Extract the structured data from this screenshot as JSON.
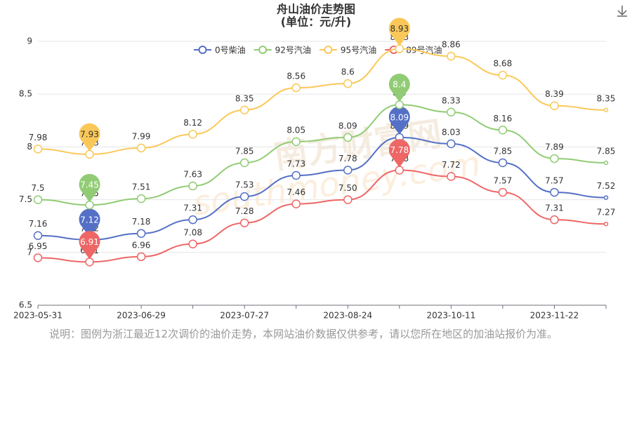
{
  "chart_data": {
    "type": "line",
    "title": "舟山油价走势图",
    "subtitle": "(单位：元/升)",
    "watermark": [
      "南方财富网",
      "southmoney.com"
    ],
    "note": "说明：图例为浙江最近12次调价的油价走势，本网站油价数据仅供参考，请以您所在地区的加油站报价为准。",
    "categories": [
      "2023-05-31",
      null,
      "2023-06-29",
      null,
      "2023-07-27",
      null,
      "2023-08-24",
      null,
      "2023-10-11",
      null,
      "2023-11-22",
      null
    ],
    "ylim": [
      6.5,
      9
    ],
    "yticks": [
      6.5,
      7,
      7.5,
      8,
      8.5,
      9
    ],
    "grid": true,
    "legend": "top",
    "series": [
      {
        "name": "0号柴油",
        "color": "#5470c6",
        "values": [
          7.16,
          7.12,
          7.18,
          7.31,
          7.53,
          7.73,
          7.78,
          8.09,
          8.03,
          7.85,
          7.57,
          7.52
        ]
      },
      {
        "name": "92号汽油",
        "color": "#91cc75",
        "values": [
          7.5,
          7.45,
          7.51,
          7.63,
          7.85,
          8.05,
          8.09,
          8.4,
          8.33,
          8.16,
          7.89,
          7.85
        ]
      },
      {
        "name": "95号汽油",
        "color": "#fac858",
        "values": [
          7.98,
          7.93,
          7.99,
          8.12,
          8.35,
          8.56,
          8.6,
          8.93,
          8.86,
          8.68,
          8.39,
          8.35
        ]
      },
      {
        "name": "89号汽油",
        "color": "#ee6666",
        "values": [
          6.95,
          6.91,
          6.96,
          7.08,
          7.28,
          7.46,
          7.5,
          7.78,
          7.72,
          7.57,
          7.31,
          7.27
        ],
        "value_labels": [
          "6.95",
          "6.91",
          "6.96",
          "7.08",
          "7.28",
          "7.46",
          "7.50",
          "7.78",
          "7.72",
          "7.57",
          "7.31",
          "7.27"
        ]
      }
    ]
  }
}
